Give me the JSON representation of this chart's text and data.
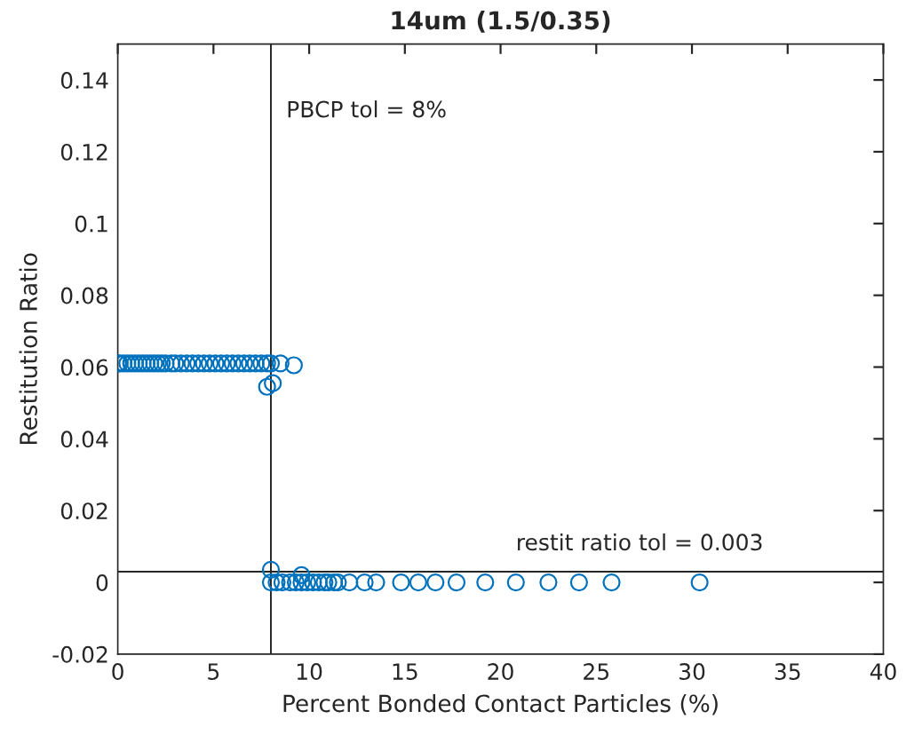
{
  "chart_data": {
    "type": "scatter",
    "title": "14um (1.5/0.35)",
    "xlabel": "Percent Bonded Contact Particles (%)",
    "ylabel": "Restitution Ratio",
    "series": [
      {
        "color": "#0072bd",
        "x": [
          0,
          0.1,
          0.3,
          0.5,
          0.7,
          0.9,
          1.1,
          1.3,
          1.5,
          1.7,
          1.9,
          2.1,
          2.3,
          2.5,
          2.8,
          3.0,
          3.3,
          3.6,
          3.9,
          4.2,
          4.5,
          4.8,
          5.1,
          5.4,
          5.7,
          6.0,
          6.3,
          6.6,
          6.9,
          7.2,
          7.5,
          7.8,
          8.0,
          8.5,
          9.2,
          7.8,
          8.1,
          8.0,
          8.0,
          8.3,
          8.6,
          9.0,
          9.3,
          9.6,
          9.9,
          10.2,
          10.5,
          10.8,
          11.0,
          11.3,
          11.5,
          12.1,
          12.9,
          13.5,
          14.8,
          15.7,
          16.6,
          17.7,
          19.2,
          20.8,
          22.5,
          24.1,
          25.8,
          30.4,
          9.6
        ],
        "values": [
          0.061,
          0.061,
          0.061,
          0.061,
          0.061,
          0.061,
          0.061,
          0.061,
          0.061,
          0.061,
          0.061,
          0.061,
          0.061,
          0.061,
          0.061,
          0.061,
          0.061,
          0.061,
          0.061,
          0.061,
          0.061,
          0.061,
          0.061,
          0.061,
          0.061,
          0.061,
          0.061,
          0.061,
          0.061,
          0.061,
          0.061,
          0.061,
          0.061,
          0.061,
          0.0605,
          0.0545,
          0.0555,
          0.0035,
          0,
          0,
          0,
          0,
          0,
          0,
          0,
          0,
          0,
          0,
          0,
          0,
          0,
          0,
          0,
          0,
          0,
          0,
          0,
          0,
          0,
          0,
          0,
          0,
          0,
          0,
          0.002
        ]
      }
    ],
    "marker": "circle",
    "grid": false,
    "legend": false,
    "xlim": [
      0,
      40
    ],
    "xticks": [
      0,
      5,
      10,
      15,
      20,
      25,
      30,
      35,
      40
    ],
    "ylim": [
      -0.02,
      0.15
    ],
    "yticks": [
      -0.02,
      0,
      0.02,
      0.04,
      0.06,
      0.08,
      0.1,
      0.12,
      0.14
    ],
    "ref_lines": [
      {
        "axis": "x",
        "value": 8,
        "label": "PBCP tol = 8%",
        "color": "#262626"
      },
      {
        "axis": "y",
        "value": 0.003,
        "label": "restit ratio tol = 0.003",
        "color": "#262626"
      }
    ]
  }
}
